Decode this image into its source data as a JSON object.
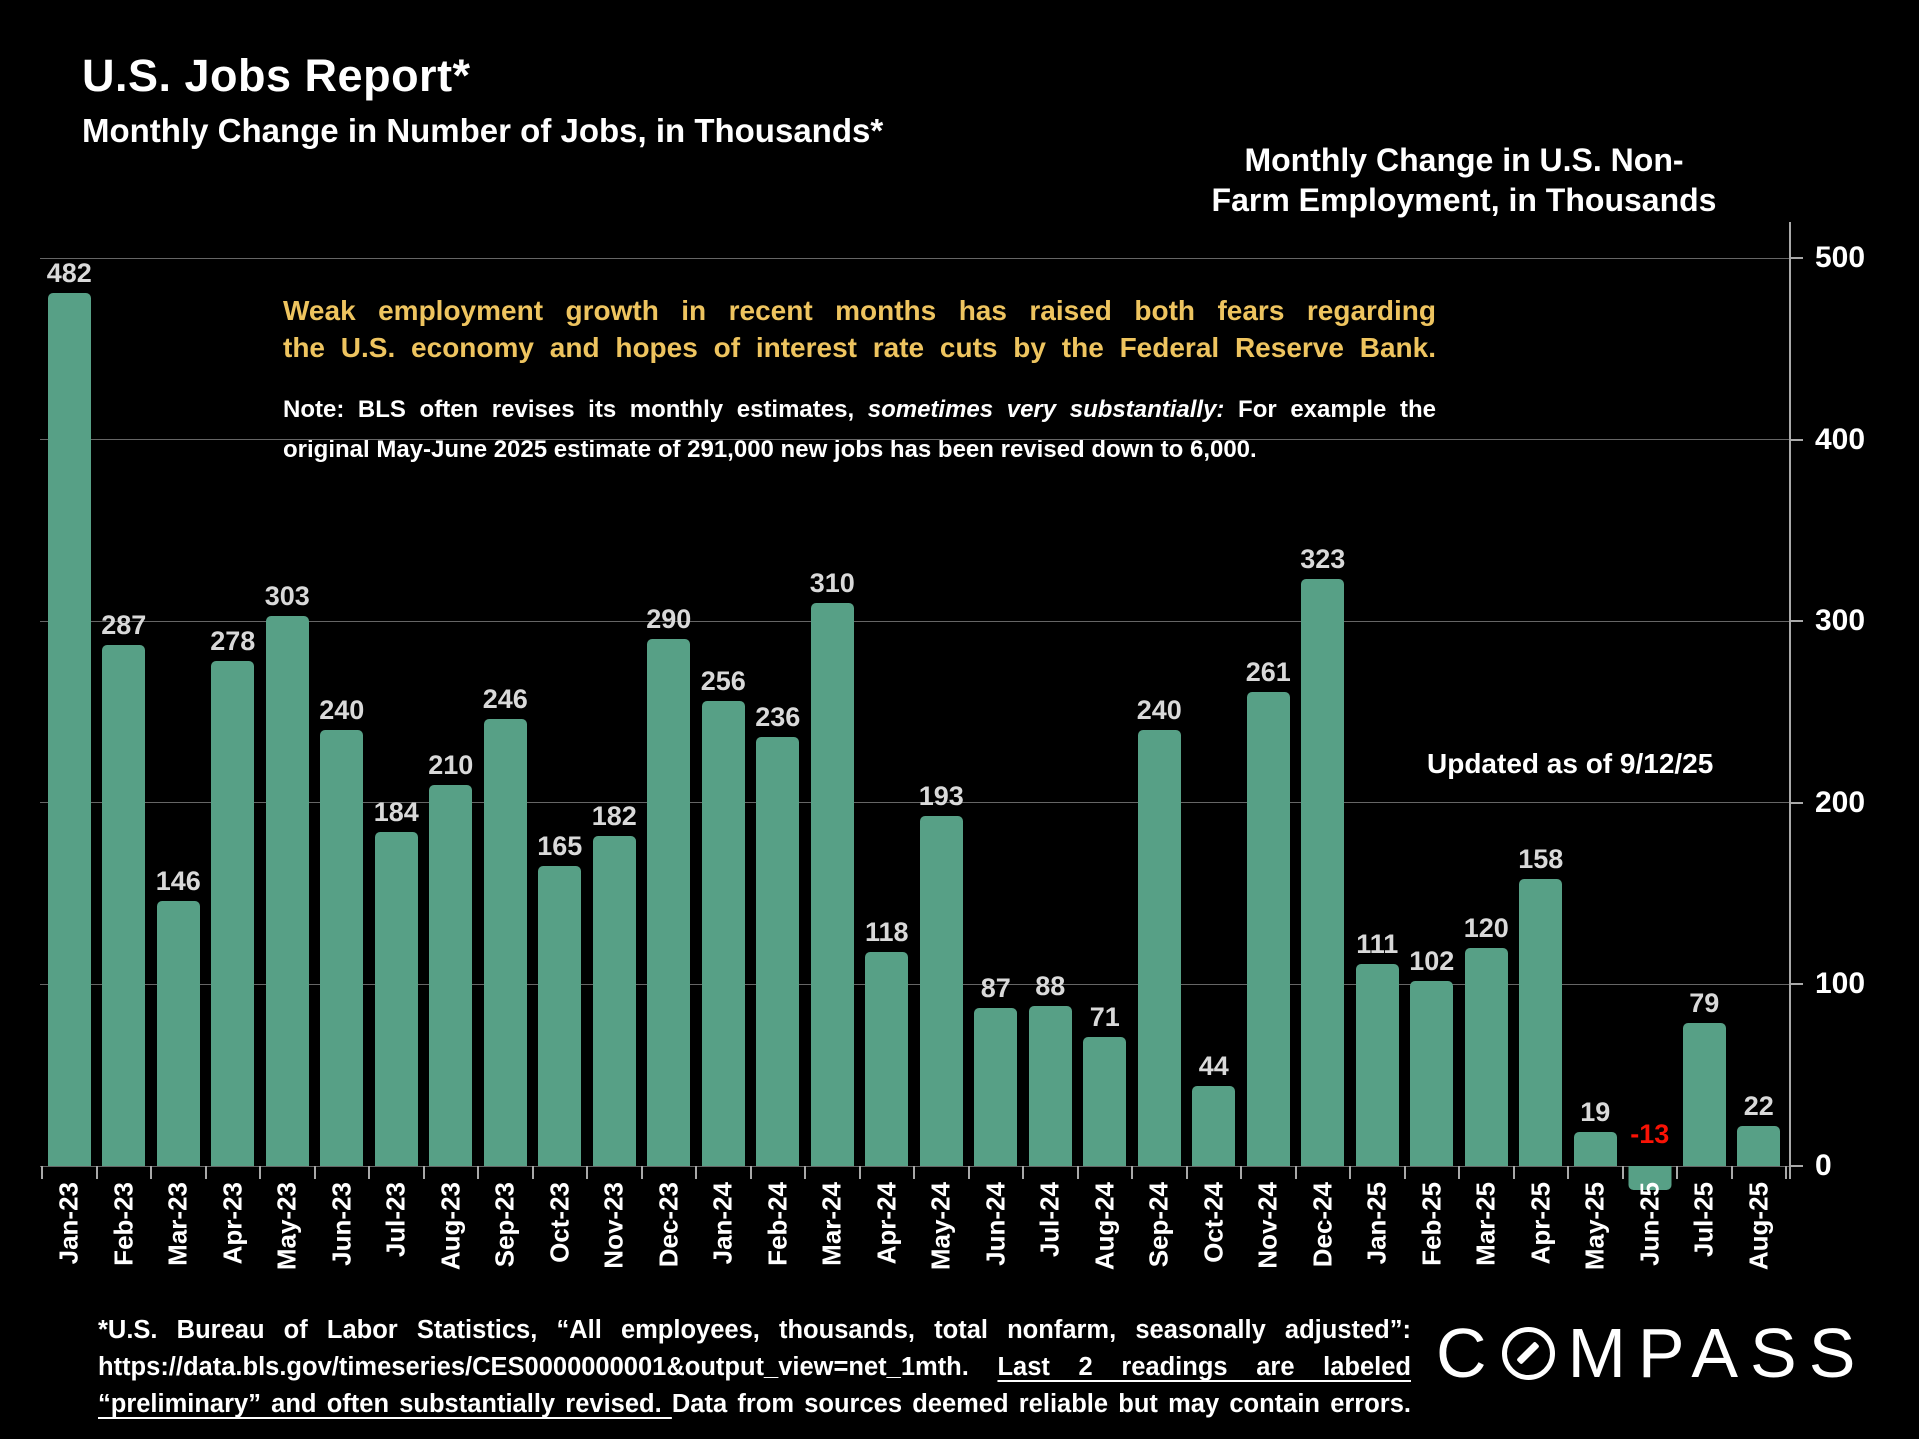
{
  "header": {
    "title": "U.S. Jobs Report*",
    "subtitle": "Monthly Change in Number of Jobs, in Thousands*"
  },
  "right_title": {
    "lines": [
      "Monthly Change in U.S. Non-",
      "Farm Employment, in Thousands"
    ]
  },
  "annotation": {
    "lines": [
      "Weak employment growth in recent months has raised both fears regarding",
      "the U.S. economy and hopes of interest rate cuts by the Federal Reserve Bank."
    ]
  },
  "note": {
    "line1_pre": "Note: BLS often revises its monthly estimates, ",
    "line1_italic": "sometimes very substantially:",
    "line1_post": " For example the",
    "line2": "original May-June 2025 estimate of 291,000 new jobs has been revised down to 6,000."
  },
  "updated_label": "Updated as of 9/12/25",
  "chart_data": {
    "type": "bar",
    "title": "Monthly Change in U.S. Non-Farm Employment, in Thousands",
    "categories": [
      "Jan-23",
      "Feb-23",
      "Mar-23",
      "Apr-23",
      "May-23",
      "Jun-23",
      "Jul-23",
      "Aug-23",
      "Sep-23",
      "Oct-23",
      "Nov-23",
      "Dec-23",
      "Jan-24",
      "Feb-24",
      "Mar-24",
      "Apr-24",
      "May-24",
      "Jun-24",
      "Jul-24",
      "Aug-24",
      "Sep-24",
      "Oct-24",
      "Nov-24",
      "Dec-24",
      "Jan-25",
      "Feb-25",
      "Mar-25",
      "Apr-25",
      "May-25",
      "Jun-25",
      "Jul-25",
      "Aug-25"
    ],
    "values": [
      482,
      287,
      146,
      278,
      303,
      240,
      184,
      210,
      246,
      165,
      182,
      290,
      256,
      236,
      310,
      118,
      193,
      87,
      88,
      71,
      240,
      44,
      261,
      323,
      111,
      102,
      120,
      158,
      19,
      -13,
      79,
      22
    ],
    "xlabel": "",
    "ylabel": "",
    "ylim": [
      0,
      500
    ],
    "yticks": [
      0,
      100,
      200,
      300,
      400,
      500
    ],
    "grid": "on",
    "legend": "none",
    "value_labels": "on"
  },
  "colors": {
    "background": "#000000",
    "bar": "#57A086",
    "annotation_yellow": "#EEC45F",
    "negative_red": "#F91205",
    "value_label": "#D9D9D9",
    "gridline": "#666666",
    "axis": "#A9A9A9",
    "text": "#FFFFFF"
  },
  "footer": {
    "line1": "*U.S. Bureau of Labor Statistics, “All employees, thousands, total nonfarm, seasonally adjusted”:",
    "line2_pre": "https://data.bls.gov/timeseries/CES0000000001&output_view=net_1mth. ",
    "line2_underline": "Last 2 readings are labeled",
    "line3_underline": "“preliminary” and often substantially revised. ",
    "line3_post": "Data from sources deemed reliable but may contain errors."
  },
  "logo": {
    "text": "COMPASS",
    "prefix": "C",
    "suffix": "MPASS"
  }
}
